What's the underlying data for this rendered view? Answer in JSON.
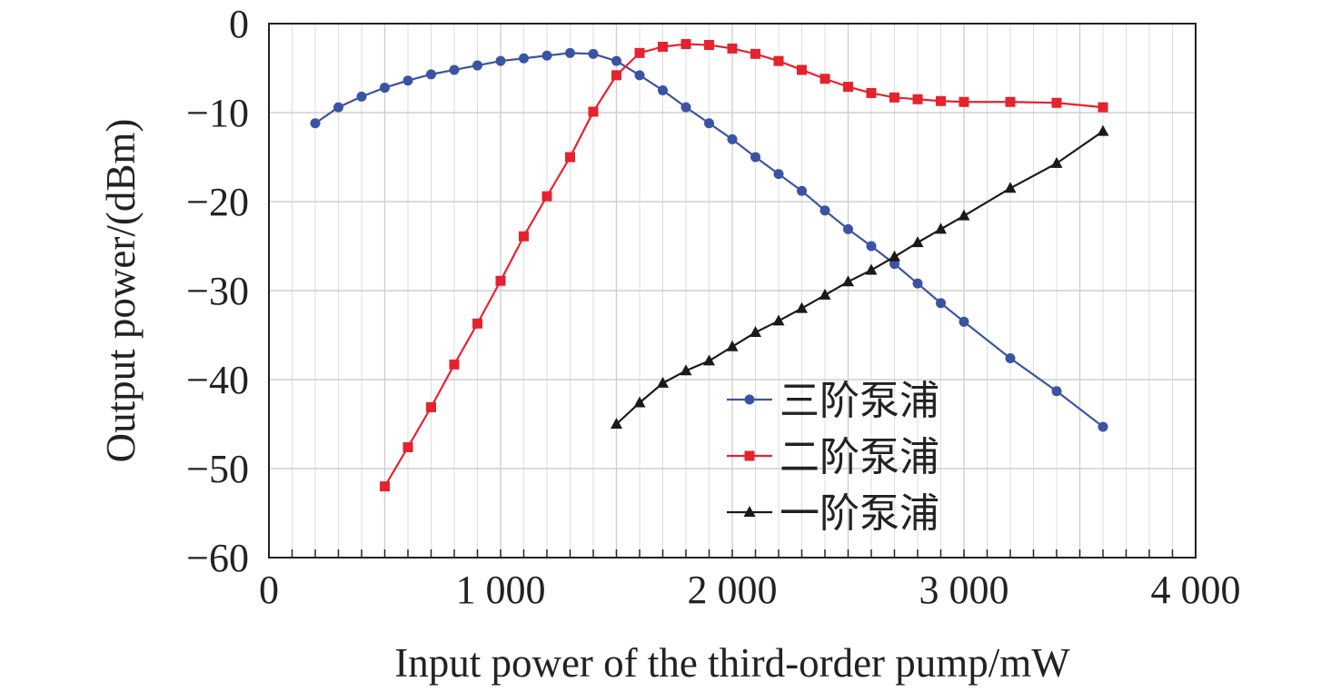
{
  "chart_data": {
    "type": "line",
    "xlabel": "Input power of the third-order pump/mW",
    "ylabel": "Output power/(dBm)",
    "xlim": [
      0,
      4000
    ],
    "ylim": [
      -60,
      0
    ],
    "x_ticks": [
      0,
      1000,
      2000,
      3000,
      4000
    ],
    "x_tick_labels": [
      "0",
      "1 000",
      "2 000",
      "3 000",
      "4 000"
    ],
    "y_ticks": [
      0,
      -10,
      -20,
      -30,
      -40,
      -50,
      -60
    ],
    "y_tick_labels": [
      "0",
      "−10",
      "−20",
      "−30",
      "−40",
      "−50",
      "−60"
    ],
    "grid": true,
    "legend_position": "lower-right",
    "series": [
      {
        "name": "三阶泵浦",
        "color": "#3b53a4",
        "marker": "circle",
        "x": [
          200,
          300,
          400,
          500,
          600,
          700,
          800,
          900,
          1000,
          1100,
          1200,
          1300,
          1400,
          1500,
          1600,
          1700,
          1800,
          1900,
          2000,
          2100,
          2200,
          2300,
          2400,
          2500,
          2600,
          2700,
          2800,
          2900,
          3000,
          3200,
          3400,
          3600
        ],
        "y": [
          -11.2,
          -9.4,
          -8.2,
          -7.2,
          -6.4,
          -5.7,
          -5.2,
          -4.7,
          -4.2,
          -3.9,
          -3.6,
          -3.3,
          -3.4,
          -4.2,
          -5.8,
          -7.5,
          -9.4,
          -11.2,
          -13.0,
          -15.0,
          -16.9,
          -18.8,
          -21.0,
          -23.1,
          -25.0,
          -27.0,
          -29.2,
          -31.4,
          -33.5,
          -37.6,
          -41.3,
          -45.3
        ]
      },
      {
        "name": "二阶泵浦",
        "color": "#e5232e",
        "marker": "square",
        "x": [
          500,
          600,
          700,
          800,
          900,
          1000,
          1100,
          1200,
          1300,
          1400,
          1500,
          1600,
          1700,
          1800,
          1900,
          2000,
          2100,
          2200,
          2300,
          2400,
          2500,
          2600,
          2700,
          2800,
          2900,
          3000,
          3200,
          3400,
          3600
        ],
        "y": [
          -52.0,
          -47.6,
          -43.1,
          -38.3,
          -33.7,
          -28.9,
          -23.9,
          -19.4,
          -15.0,
          -9.9,
          -5.8,
          -3.3,
          -2.6,
          -2.3,
          -2.4,
          -2.8,
          -3.4,
          -4.2,
          -5.2,
          -6.2,
          -7.1,
          -7.8,
          -8.3,
          -8.5,
          -8.7,
          -8.8,
          -8.8,
          -8.9,
          -9.4
        ]
      },
      {
        "name": "一阶泵浦",
        "color": "#1a1a1a",
        "marker": "triangle",
        "x": [
          1500,
          1600,
          1700,
          1800,
          1900,
          2000,
          2100,
          2200,
          2300,
          2400,
          2500,
          2600,
          2700,
          2800,
          2900,
          3000,
          3200,
          3400,
          3600
        ],
        "y": [
          -45.0,
          -42.6,
          -40.4,
          -39.0,
          -37.9,
          -36.3,
          -34.7,
          -33.4,
          -32.0,
          -30.5,
          -29.0,
          -27.7,
          -26.2,
          -24.6,
          -23.1,
          -21.6,
          -18.5,
          -15.7,
          -12.1
        ]
      }
    ]
  }
}
